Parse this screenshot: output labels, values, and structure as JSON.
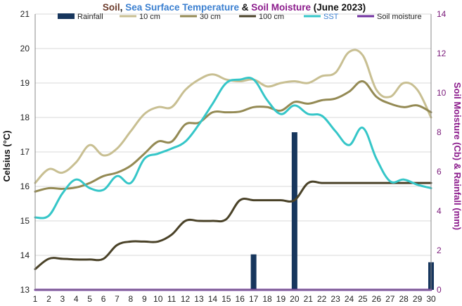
{
  "colors": {
    "title_soil": "#6b3a2a",
    "title_sst": "#3a7fd0",
    "title_moisture": "#8b1a8b",
    "title_rest": "#111111",
    "rainfall": "#17365d",
    "10cm": "#c8bf92",
    "30cm": "#948a54",
    "100cm": "#4a4228",
    "SST": "#35c6c8",
    "soil_moisture": "#7030a0",
    "grid": "#d9d9d9"
  },
  "chart_data": {
    "type": "line",
    "title_parts": [
      {
        "text": "Soil",
        "color_key": "title_soil"
      },
      {
        "text": ", ",
        "color_key": "title_rest"
      },
      {
        "text": "Sea Surface Temperature",
        "color_key": "title_sst"
      },
      {
        "text": " & ",
        "color_key": "title_rest"
      },
      {
        "text": "Soil Moisture",
        "color_key": "title_moisture"
      },
      {
        "text": " (June 2023)",
        "color_key": "title_rest"
      }
    ],
    "ylabel": "Celsius (°C)",
    "y2label": "Soil Moisture (Cb) & Rainfall (mm)",
    "ylim": [
      13,
      21
    ],
    "y2lim": [
      0,
      14
    ],
    "y_ticks": [
      13,
      14,
      15,
      16,
      17,
      18,
      19,
      20,
      21
    ],
    "y2_ticks": [
      0,
      2,
      4,
      6,
      8,
      10,
      12,
      14
    ],
    "x": [
      1,
      2,
      3,
      4,
      5,
      6,
      7,
      8,
      9,
      10,
      11,
      12,
      13,
      14,
      15,
      16,
      17,
      18,
      19,
      20,
      21,
      22,
      23,
      24,
      25,
      26,
      27,
      28,
      29,
      30
    ],
    "grid": true,
    "legend_position": "top",
    "legend": [
      "Rainfall",
      "10 cm",
      "30 cm",
      "100 cm",
      "SST",
      "Soil moisture"
    ],
    "bars": {
      "name": "Rainfall",
      "axis": "right",
      "values": [
        0,
        0,
        0,
        0,
        0,
        0,
        0,
        0,
        0,
        0,
        0,
        0,
        0,
        0,
        0,
        0,
        1.8,
        0,
        0,
        8.0,
        0,
        0,
        0,
        0,
        0,
        0,
        0,
        0,
        0,
        1.4
      ]
    },
    "series": [
      {
        "name": "10 cm",
        "axis": "left",
        "values": [
          16.1,
          16.5,
          16.4,
          16.7,
          17.2,
          16.9,
          17.1,
          17.6,
          18.1,
          18.3,
          18.3,
          18.8,
          19.1,
          19.25,
          19.1,
          19.05,
          19.1,
          18.9,
          19.0,
          19.05,
          19.0,
          19.2,
          19.3,
          19.9,
          19.8,
          18.8,
          18.6,
          19.0,
          18.8,
          18.0
        ]
      },
      {
        "name": "30 cm",
        "axis": "left",
        "values": [
          15.85,
          15.95,
          15.93,
          15.97,
          16.1,
          16.3,
          16.4,
          16.6,
          16.95,
          17.3,
          17.3,
          17.8,
          17.85,
          18.15,
          18.15,
          18.17,
          18.3,
          18.3,
          18.2,
          18.45,
          18.4,
          18.5,
          18.55,
          18.75,
          19.05,
          18.6,
          18.4,
          18.3,
          18.35,
          18.15
        ]
      },
      {
        "name": "100 cm",
        "axis": "left",
        "values": [
          13.6,
          13.9,
          13.9,
          13.88,
          13.88,
          13.9,
          14.3,
          14.4,
          14.4,
          14.4,
          14.6,
          15.0,
          15.0,
          15.0,
          15.05,
          15.6,
          15.6,
          15.6,
          15.6,
          15.6,
          16.1,
          16.1,
          16.1,
          16.1,
          16.1,
          16.1,
          16.1,
          16.1,
          16.1,
          16.1
        ]
      },
      {
        "name": "SST",
        "axis": "left",
        "values": [
          15.1,
          15.15,
          15.8,
          16.2,
          15.95,
          15.9,
          16.3,
          16.1,
          16.8,
          16.95,
          17.1,
          17.3,
          17.8,
          18.4,
          19.0,
          19.1,
          19.1,
          18.5,
          18.1,
          18.35,
          18.1,
          18.05,
          17.6,
          17.2,
          17.7,
          16.8,
          16.15,
          16.2,
          16.05,
          15.95
        ]
      },
      {
        "name": "Soil moisture",
        "axis": "right",
        "values": [
          0,
          0,
          0,
          0,
          0,
          0,
          0,
          0,
          0,
          0,
          0,
          0,
          0,
          0,
          0,
          0,
          0,
          0,
          0,
          0,
          0,
          0,
          0,
          0,
          0,
          0,
          0,
          0,
          0,
          0
        ]
      }
    ]
  }
}
